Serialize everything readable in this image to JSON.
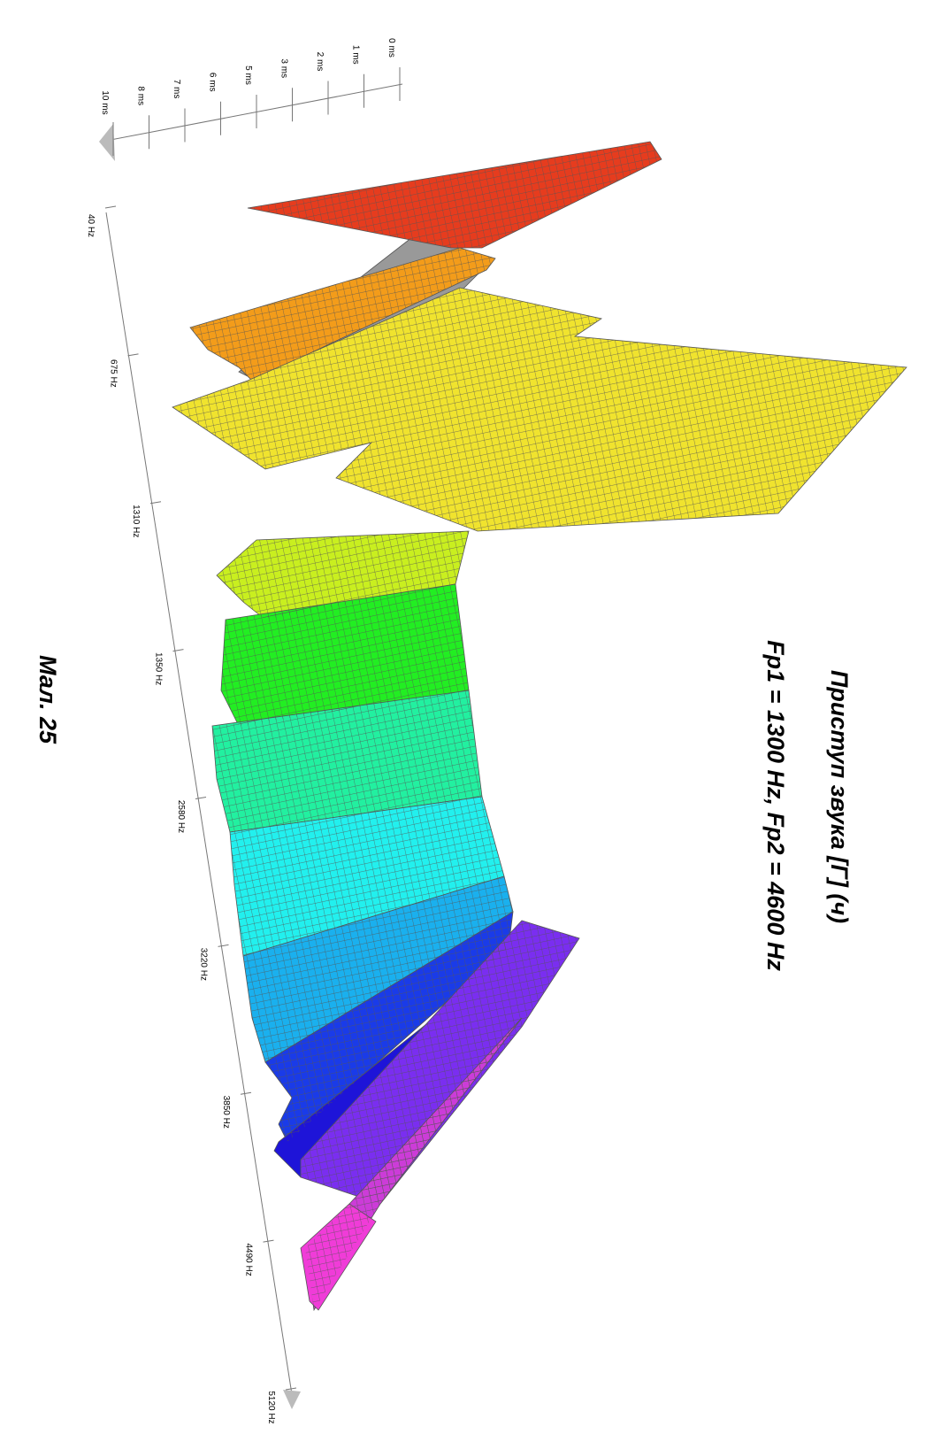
{
  "figure": {
    "title": "Приступ звука [Г] (ч)",
    "subtitle": "Fp1 = 1300 Hz, Fp2 = 4600 Hz",
    "caption": "Мал. 25",
    "time_axis": {
      "labels": [
        "0 ms",
        "1 ms",
        "2 ms",
        "3 ms",
        "5 ms",
        "6 ms",
        "7 ms",
        "8 ms",
        "10 ms"
      ]
    },
    "frequency_axis": {
      "labels": [
        "40 Hz",
        "675 Hz",
        "1310 Hz",
        "1350 Hz",
        "2580 Hz",
        "3220 Hz",
        "3850 Hz",
        "4490 Hz",
        "5120 Hz"
      ]
    }
  }
}
